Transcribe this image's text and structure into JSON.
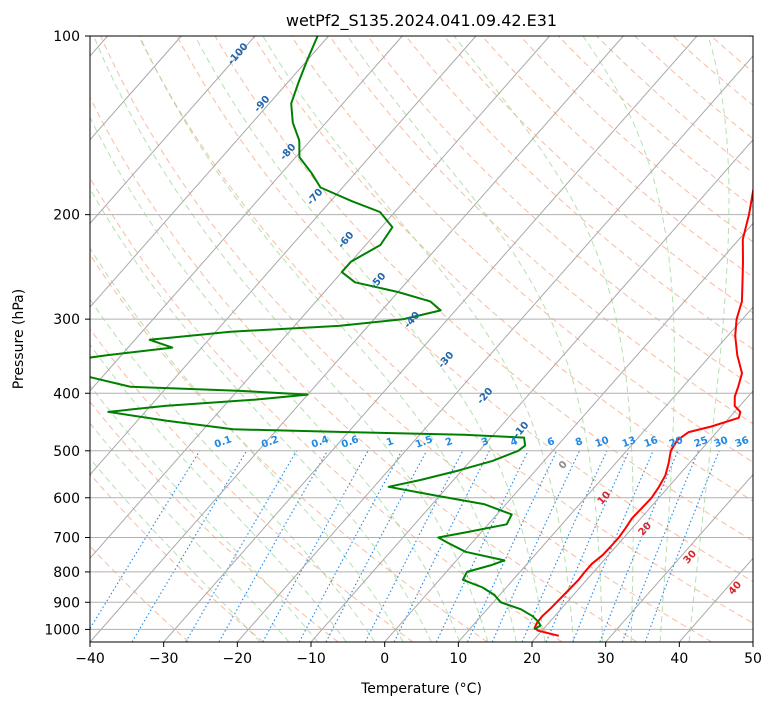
{
  "chart_data": {
    "type": "skew-t",
    "title": "wetPf2_S135.2024.041.09.42.E31",
    "xlabel": "Temperature (°C)",
    "ylabel": "Pressure (hPa)",
    "xlim": [
      -40,
      50
    ],
    "ylim": [
      1050,
      100
    ],
    "y_scale": "log",
    "grid": true,
    "x_ticks": [
      -40,
      -30,
      -20,
      -10,
      0,
      10,
      20,
      30,
      40,
      50
    ],
    "y_ticks": [
      100,
      200,
      300,
      400,
      500,
      600,
      700,
      800,
      900,
      1000
    ],
    "colors": {
      "temperature": "#ff0000",
      "dewpoint": "#008000",
      "isotherm": "#a9a9a9",
      "dry_adiabat": "#f4a582",
      "moist_adiabat": "#a1d99b",
      "mixing_ratio": "#1e88e5",
      "isotherm_label": "#2166ac",
      "mixing_ratio_label": "#1e88e5",
      "warm_label": "#d62728",
      "zero_label": "#888888"
    },
    "series": [
      {
        "name": "Temperature",
        "points": [
          [
            1025,
            22.9
          ],
          [
            1005,
            19.5
          ],
          [
            995,
            18.7
          ],
          [
            975,
            18.4
          ],
          [
            950,
            18.3
          ],
          [
            925,
            18.5
          ],
          [
            900,
            18.6
          ],
          [
            875,
            18.7
          ],
          [
            850,
            18.8
          ],
          [
            825,
            18.9
          ],
          [
            800,
            18.8
          ],
          [
            775,
            18.8
          ],
          [
            750,
            19.2
          ],
          [
            725,
            19.3
          ],
          [
            700,
            19.3
          ],
          [
            675,
            19.1
          ],
          [
            650,
            18.8
          ],
          [
            625,
            18.9
          ],
          [
            600,
            19.0
          ],
          [
            575,
            18.7
          ],
          [
            550,
            18.2
          ],
          [
            525,
            17.2
          ],
          [
            500,
            16.0
          ],
          [
            480,
            15.6
          ],
          [
            465,
            16.2
          ],
          [
            455,
            18.6
          ],
          [
            440,
            21.3
          ],
          [
            430,
            20.8
          ],
          [
            420,
            19.3
          ],
          [
            405,
            18.2
          ],
          [
            390,
            17.5
          ],
          [
            370,
            16.4
          ],
          [
            345,
            13.6
          ],
          [
            320,
            11.0
          ],
          [
            300,
            9.2
          ],
          [
            280,
            7.8
          ],
          [
            260,
            5.6
          ],
          [
            240,
            3.2
          ],
          [
            220,
            0.5
          ],
          [
            200,
            -1.6
          ],
          [
            180,
            -4.2
          ],
          [
            160,
            -6.8
          ],
          [
            140,
            -9.5
          ],
          [
            125,
            -12.0
          ],
          [
            115,
            -14.5
          ],
          [
            108,
            -16.0
          ],
          [
            100,
            -17.5
          ]
        ]
      },
      {
        "name": "Dewpoint",
        "points": [
          [
            1000,
            18.8
          ],
          [
            985,
            19.2
          ],
          [
            970,
            18.4
          ],
          [
            950,
            17.0
          ],
          [
            925,
            14.6
          ],
          [
            900,
            11.0
          ],
          [
            875,
            9.3
          ],
          [
            850,
            6.8
          ],
          [
            825,
            3.2
          ],
          [
            800,
            2.8
          ],
          [
            780,
            5.2
          ],
          [
            765,
            6.5
          ],
          [
            740,
            0.2
          ],
          [
            715,
            -3.2
          ],
          [
            700,
            -5.2
          ],
          [
            685,
            -1.8
          ],
          [
            665,
            2.5
          ],
          [
            640,
            2.0
          ],
          [
            615,
            -3.0
          ],
          [
            595,
            -10.5
          ],
          [
            575,
            -18.0
          ],
          [
            560,
            -14.5
          ],
          [
            540,
            -10.5
          ],
          [
            520,
            -7.0
          ],
          [
            500,
            -4.7
          ],
          [
            490,
            -4.4
          ],
          [
            475,
            -5.5
          ],
          [
            470,
            -14.0
          ],
          [
            465,
            -30.0
          ],
          [
            460,
            -46.0
          ],
          [
            445,
            -56.0
          ],
          [
            430,
            -65.0
          ],
          [
            420,
            -58.0
          ],
          [
            410,
            -46.5
          ],
          [
            402,
            -40.0
          ],
          [
            396,
            -50.0
          ],
          [
            390,
            -65.0
          ],
          [
            375,
            -72.0
          ],
          [
            358,
            -80.0
          ],
          [
            345,
            -72.0
          ],
          [
            335,
            -64.0
          ],
          [
            325,
            -68.0
          ],
          [
            315,
            -58.0
          ],
          [
            308,
            -44.0
          ],
          [
            300,
            -36.0
          ],
          [
            290,
            -32.0
          ],
          [
            280,
            -34.5
          ],
          [
            270,
            -40.0
          ],
          [
            260,
            -47.0
          ],
          [
            250,
            -50.0
          ],
          [
            240,
            -50.0
          ],
          [
            225,
            -48.0
          ],
          [
            210,
            -48.5
          ],
          [
            198,
            -52.0
          ],
          [
            190,
            -57.0
          ],
          [
            180,
            -63.0
          ],
          [
            170,
            -66.0
          ],
          [
            160,
            -69.5
          ],
          [
            150,
            -71.5
          ],
          [
            140,
            -74.5
          ],
          [
            130,
            -77.0
          ],
          [
            120,
            -78.5
          ],
          [
            110,
            -80.0
          ],
          [
            100,
            -81.5
          ]
        ]
      }
    ],
    "isotherm_labels": [
      "-100",
      "-90",
      "-80",
      "-70",
      "-60",
      "-50",
      "-40",
      "-30",
      "-20",
      "-10",
      "0",
      "10",
      "20",
      "30",
      "40"
    ],
    "mixing_ratio_labels": [
      "0.1",
      "0.2",
      "0.4",
      "0.6",
      "1",
      "1.5",
      "2",
      "3",
      "4",
      "6",
      "8",
      "10",
      "13",
      "16",
      "20",
      "25",
      "30",
      "36"
    ]
  }
}
